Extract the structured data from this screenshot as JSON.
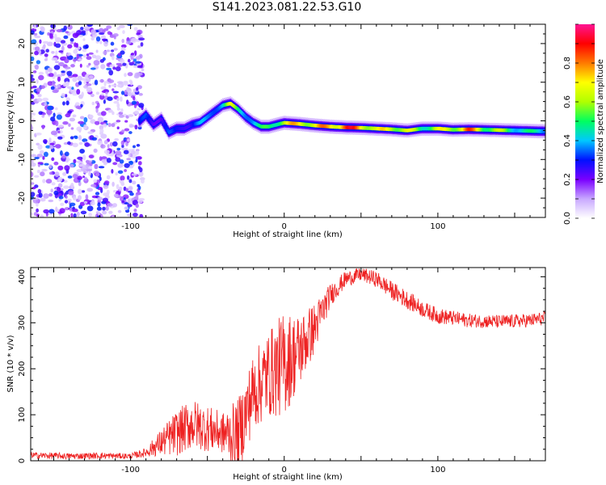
{
  "title": "S141.2023.081.22.53.G10",
  "chart_data": [
    {
      "type": "heatmap",
      "xlabel": "Height of straight line (km)",
      "ylabel": "Frequency (Hz)",
      "xlim": [
        -165,
        170
      ],
      "ylim": [
        -25,
        25
      ],
      "xticks": [
        -100,
        0,
        100
      ],
      "yticks": [
        -20,
        -10,
        0,
        10,
        20
      ],
      "colorbar": {
        "label": "Normalized spectral amplitude",
        "range": [
          0,
          1
        ],
        "ticks": [
          0.0,
          0.2,
          0.4,
          0.6,
          0.8
        ],
        "colors": [
          "#ffffff",
          "#c8a8ff",
          "#7a00ff",
          "#0010ff",
          "#00c8ff",
          "#00ff60",
          "#b0ff00",
          "#ffff00",
          "#ff7a00",
          "#ff0000",
          "#ff1493"
        ]
      },
      "noise_region": {
        "x": [
          -165,
          -92
        ],
        "amplitude_range": [
          0.05,
          0.35
        ]
      },
      "ridge": {
        "x": [
          -94,
          -90,
          -85,
          -80,
          -75,
          -70,
          -65,
          -60,
          -55,
          -50,
          -45,
          -40,
          -35,
          -30,
          -25,
          -20,
          -15,
          -10,
          -5,
          0,
          10,
          20,
          30,
          40,
          50,
          60,
          70,
          80,
          90,
          100,
          110,
          120,
          130,
          140,
          150,
          160,
          170
        ],
        "freq": [
          0,
          1.5,
          -1,
          0.5,
          -3,
          -2,
          -2,
          -1,
          -0.5,
          1,
          2.5,
          4,
          4.5,
          3,
          1,
          -0.5,
          -1.5,
          -1.5,
          -1,
          -0.5,
          -0.8,
          -1.2,
          -1.5,
          -1.7,
          -1.8,
          -2,
          -2.2,
          -2.5,
          -2,
          -2,
          -2.3,
          -2.2,
          -2.3,
          -2.4,
          -2.5,
          -2.6,
          -2.7
        ],
        "amplitude": [
          0.3,
          0.35,
          0.3,
          0.3,
          0.35,
          0.3,
          0.35,
          0.35,
          0.4,
          0.4,
          0.45,
          0.5,
          0.7,
          0.55,
          0.5,
          0.45,
          0.5,
          0.6,
          0.65,
          0.7,
          0.85,
          0.75,
          0.9,
          0.95,
          0.9,
          0.7,
          0.8,
          0.7,
          0.6,
          0.7,
          0.75,
          0.9,
          0.7,
          0.65,
          0.55,
          0.5,
          0.5
        ]
      }
    },
    {
      "type": "line",
      "xlabel": "Height of straight line (km)",
      "ylabel": "SNR (10 * v/v)",
      "xlim": [
        -165,
        170
      ],
      "ylim": [
        0,
        420
      ],
      "xticks": [
        -100,
        0,
        100
      ],
      "yticks": [
        0,
        100,
        200,
        300,
        400
      ],
      "color": "#ee2222",
      "x": [
        -165,
        -140,
        -120,
        -100,
        -90,
        -80,
        -70,
        -60,
        -50,
        -40,
        -30,
        -20,
        -10,
        -5,
        0,
        10,
        20,
        30,
        40,
        50,
        60,
        70,
        80,
        90,
        100,
        120,
        140,
        160,
        170
      ],
      "snr": [
        12,
        10,
        11,
        10,
        18,
        40,
        60,
        80,
        70,
        60,
        55,
        150,
        190,
        200,
        210,
        240,
        290,
        360,
        395,
        405,
        395,
        370,
        350,
        330,
        315,
        305,
        302,
        305,
        310
      ],
      "noise_pp": [
        14,
        14,
        14,
        12,
        20,
        60,
        100,
        110,
        100,
        90,
        160,
        170,
        190,
        210,
        230,
        160,
        110,
        50,
        35,
        30,
        35,
        40,
        40,
        35,
        35,
        30,
        30,
        30,
        30
      ]
    }
  ]
}
